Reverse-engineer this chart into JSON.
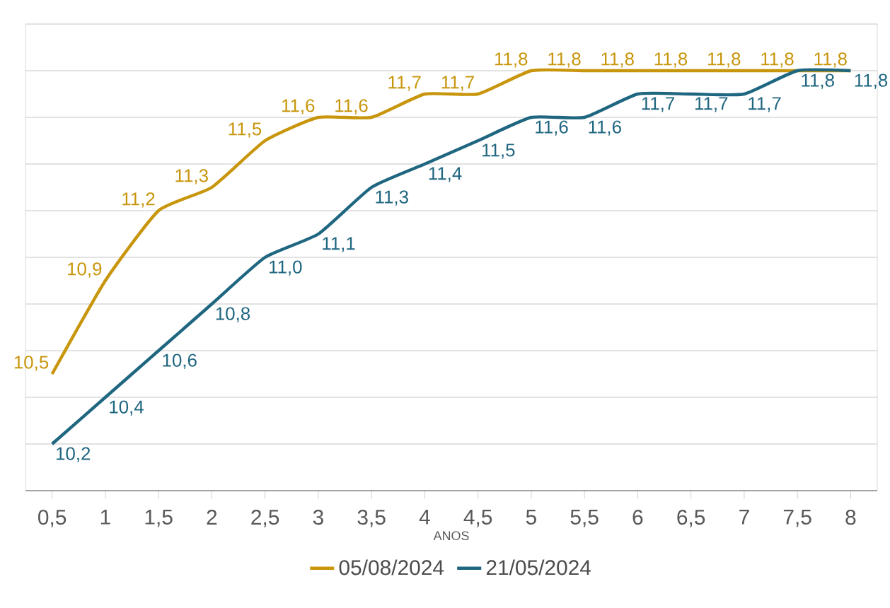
{
  "chart_data": {
    "type": "line",
    "xlabel": "ANOS",
    "x": [
      0.5,
      1,
      1.5,
      2,
      2.5,
      3,
      3.5,
      4,
      4.5,
      5,
      5.5,
      6,
      6.5,
      7,
      7.5,
      8
    ],
    "series": [
      {
        "name": "05/08/2024",
        "color": "#c8960c",
        "values": [
          10.5,
          10.9,
          11.2,
          11.3,
          11.5,
          11.6,
          11.6,
          11.7,
          11.7,
          11.8,
          11.8,
          11.8,
          11.8,
          11.8,
          11.8,
          11.8
        ],
        "value_labels": [
          "10,5",
          "10,9",
          "11,2",
          "11,3",
          "11,5",
          "11,6",
          "11,6",
          "11,7",
          "11,7",
          "11,8",
          "11,8",
          "11,8",
          "11,8",
          "11,8",
          "11,8",
          "11,8"
        ]
      },
      {
        "name": "21/05/2024",
        "color": "#1f6680",
        "values": [
          10.2,
          10.4,
          10.6,
          10.8,
          11.0,
          11.1,
          11.3,
          11.4,
          11.5,
          11.6,
          11.6,
          11.7,
          11.7,
          11.7,
          11.8,
          11.8
        ],
        "value_labels": [
          "10,2",
          "10,4",
          "10,6",
          "10,8",
          "11,0",
          "11,1",
          "11,3",
          "11,4",
          "11,5",
          "11,6",
          "11,6",
          "11,7",
          "11,7",
          "11,7",
          "11,8",
          "11,8"
        ]
      }
    ],
    "xlim": [
      0.25,
      8.25
    ],
    "xticks": [
      {
        "value": 0.5,
        "label": "0,5"
      },
      1,
      {
        "value": 1.5,
        "label": "1,5"
      },
      2,
      {
        "value": 2.5,
        "label": "2,5"
      },
      3,
      {
        "value": 3.5,
        "label": "3,5"
      },
      4,
      {
        "value": 4.5,
        "label": "4,5"
      },
      5,
      {
        "value": 5.5,
        "label": "5,5"
      },
      6,
      {
        "value": 6.5,
        "label": "6,5"
      },
      7,
      {
        "value": 7.5,
        "label": "7,5"
      },
      8
    ],
    "ylim": [
      10,
      12
    ],
    "yticks": [
      {
        "value": 10,
        "label": null
      },
      {
        "value": 10.2,
        "label": null
      },
      {
        "value": 10.4,
        "label": null
      },
      {
        "value": 10.6,
        "label": null
      },
      {
        "value": 10.8,
        "label": null
      },
      {
        "value": 11,
        "label": null
      },
      {
        "value": 11.2,
        "label": null
      },
      {
        "value": 11.4,
        "label": null
      },
      {
        "value": 11.6,
        "label": null
      },
      {
        "value": 11.8,
        "label": null
      },
      {
        "value": 12,
        "label": null
      }
    ],
    "tick_labels": "x",
    "grid": "y",
    "legend": "bottom",
    "marker": "none",
    "line_style": "solid"
  }
}
